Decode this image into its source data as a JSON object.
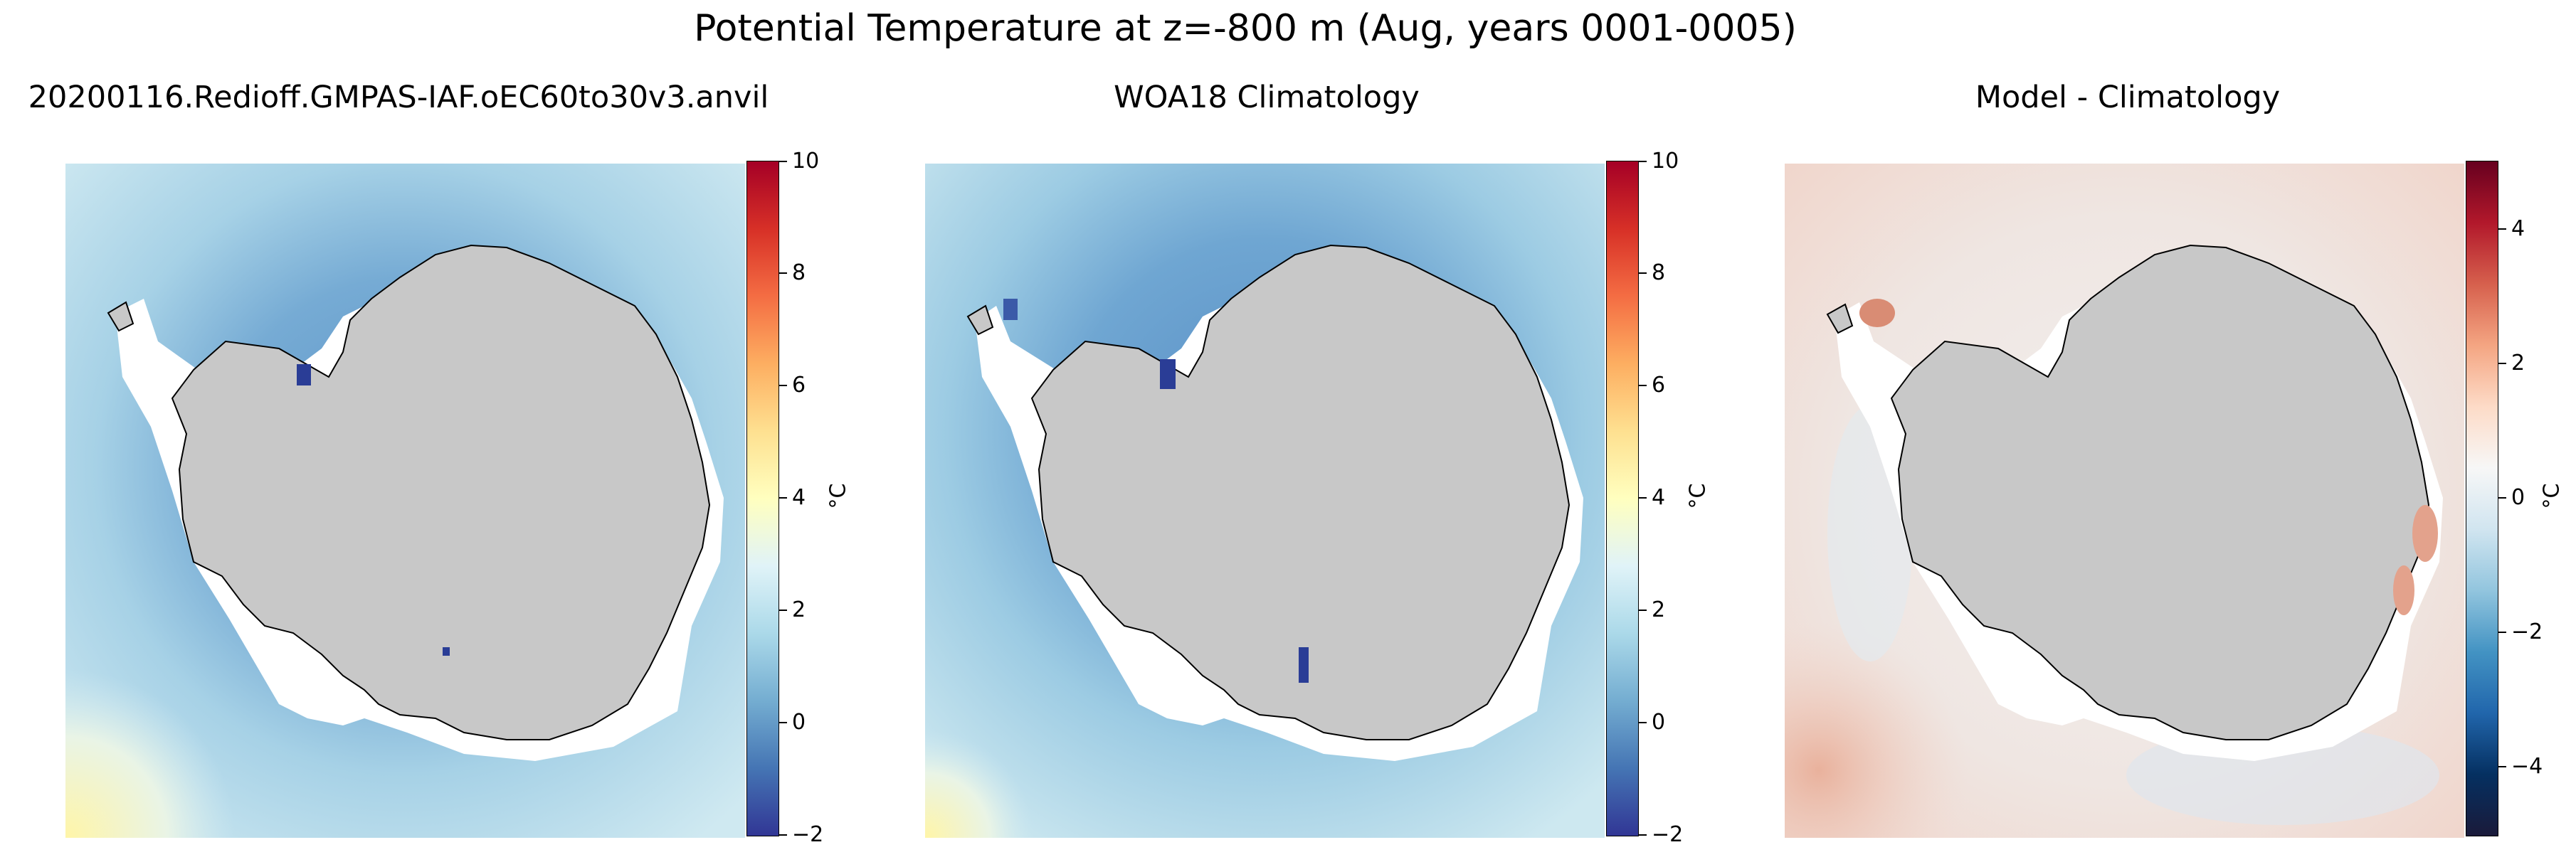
{
  "figure": {
    "title": "Potential Temperature at z=-800 m (Aug, years 0001-0005)"
  },
  "panels": [
    {
      "title": "20200116.Redioff.GMPAS-IAF.oEC60to30v3.anvil",
      "colorbar": {
        "unit": "°C",
        "ticks": [
          "10",
          "8",
          "6",
          "4",
          "2",
          "0",
          "−2"
        ],
        "range": [
          -2,
          10
        ],
        "colormap": "RdYlBu_r"
      }
    },
    {
      "title": "WOA18 Climatology",
      "colorbar": {
        "unit": "°C",
        "ticks": [
          "10",
          "8",
          "6",
          "4",
          "2",
          "0",
          "−2"
        ],
        "range": [
          -2,
          10
        ],
        "colormap": "RdYlBu_r"
      }
    },
    {
      "title": "Model - Climatology",
      "colorbar": {
        "unit": "°C",
        "ticks": [
          "4",
          "2",
          "0",
          "−2",
          "−4"
        ],
        "range": [
          -5,
          5
        ],
        "colormap": "RdBu_r"
      }
    }
  ],
  "colors": {
    "land": "#c8c8c8",
    "ocean_cold_blue": "#7fb0d6",
    "ocean_light_blue": "#bfe1ef",
    "diff_light": "#eeeeee",
    "diff_red": "#f1c4b4"
  }
}
